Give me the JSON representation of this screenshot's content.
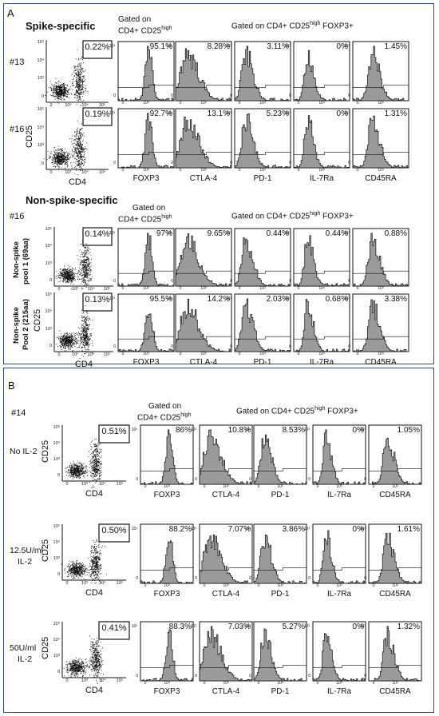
{
  "panel_a": {
    "label": "A",
    "sections": [
      {
        "title": "Spike-specific",
        "gate_label_1": "Gated on",
        "gate_label_2": "CD4+ CD25",
        "gate_label_sup": "high",
        "gate_label_3": "Gated on CD4+ CD25",
        "gate_label_3_sup": "high",
        "gate_label_3_tail": " FOXP3+",
        "rows": [
          {
            "sample": "#13",
            "side_label": "",
            "gate_pct": "0.22%",
            "values": [
              "95.1%",
              "8.28%",
              "3.11%",
              "0%",
              "1.45%"
            ]
          },
          {
            "sample": "#16",
            "side_label": "",
            "gate_pct": "0.19%",
            "values": [
              "92.7%",
              "13.1%",
              "5.23%",
              "0%",
              "1.31%"
            ]
          }
        ]
      },
      {
        "title": "Non-spike-specific",
        "sample": "#16",
        "gate_label_1": "Gated on",
        "gate_label_2": "CD4+ CD25",
        "gate_label_sup": "high",
        "gate_label_3": "Gated on CD4+ CD25",
        "gate_label_3_sup": "high",
        "gate_label_3_tail": " FOXP3+",
        "rows": [
          {
            "side_label_1": "Non-spike",
            "side_label_2": "pool 1 (69aa)",
            "gate_pct": "0.14%",
            "values": [
              "97%",
              "9.65%",
              "0.44%",
              "0.44%",
              "0.88%"
            ]
          },
          {
            "side_label_1": "Non-spike",
            "side_label_2": "Pool 2 (215aa)",
            "gate_pct": "0.13%",
            "values": [
              "95.5%",
              "14.2%",
              "2.03%",
              "0.68%",
              "3.38%"
            ]
          }
        ]
      }
    ],
    "dot_xlabel": "CD4",
    "dot_ylabel": "CD25",
    "markers": [
      "FOXP3",
      "CTLA-4",
      "PD-1",
      "IL-7Ra",
      "CD45RA"
    ]
  },
  "panel_b": {
    "label": "B",
    "sample": "#14",
    "gate_label_1": "Gated on",
    "gate_label_2": "CD4+ CD25",
    "gate_label_sup": "high",
    "gate_label_3": "Gated on CD4+ CD25",
    "gate_label_3_sup": "high",
    "gate_label_3_tail": " FOXP3+",
    "dot_xlabel": "CD4",
    "dot_ylabel": "CD25",
    "markers": [
      "FOXP3",
      "CTLA-4",
      "PD-1",
      "IL-7Ra",
      "CD45RA"
    ],
    "rows": [
      {
        "condition_1": "No IL-2",
        "condition_2": "",
        "gate_pct": "0.51%",
        "values": [
          "86%",
          "10.8%",
          "8.53%",
          "0%",
          "1.05%"
        ]
      },
      {
        "condition_1": "12.5U/ml",
        "condition_2": "IL-2",
        "gate_pct": "0.50%",
        "values": [
          "88.2%",
          "7.07%",
          "3.86%",
          "0%",
          "1.61%"
        ]
      },
      {
        "condition_1": "50U/ml",
        "condition_2": "IL-2",
        "gate_pct": "0.41%",
        "values": [
          "88.3%",
          "7.03%",
          "5.27%",
          "0%",
          "1.32%"
        ]
      }
    ]
  },
  "axis_ticks": {
    "log_y": [
      "10⁵",
      "10⁴",
      "10³",
      "0"
    ],
    "log_x": [
      "0",
      "10³",
      "10⁴",
      "10⁵"
    ]
  },
  "colors": {
    "border": "#2b4a8a",
    "hist_fill": "#9a9a9a",
    "ink": "#111111"
  }
}
